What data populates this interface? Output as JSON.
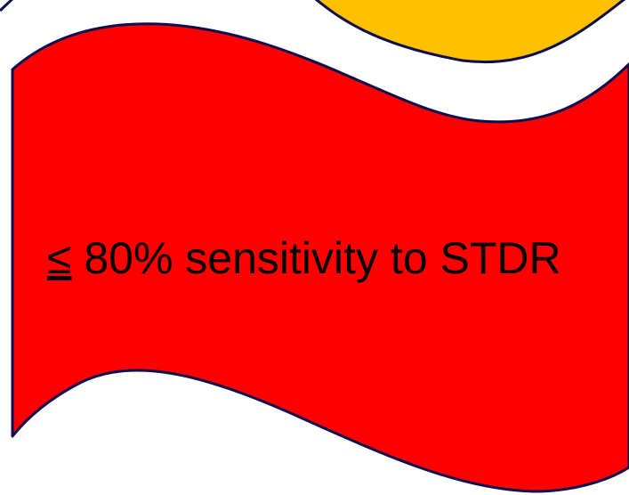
{
  "banner": {
    "symbol": "≤",
    "text": " 80% sensitivity to STDR"
  },
  "colors": {
    "upper_banner_fill": "#ffc000",
    "lower_banner_fill": "#ff0000",
    "outline": "#0d0d4f",
    "text": "#000000",
    "background": "#ffffff"
  }
}
